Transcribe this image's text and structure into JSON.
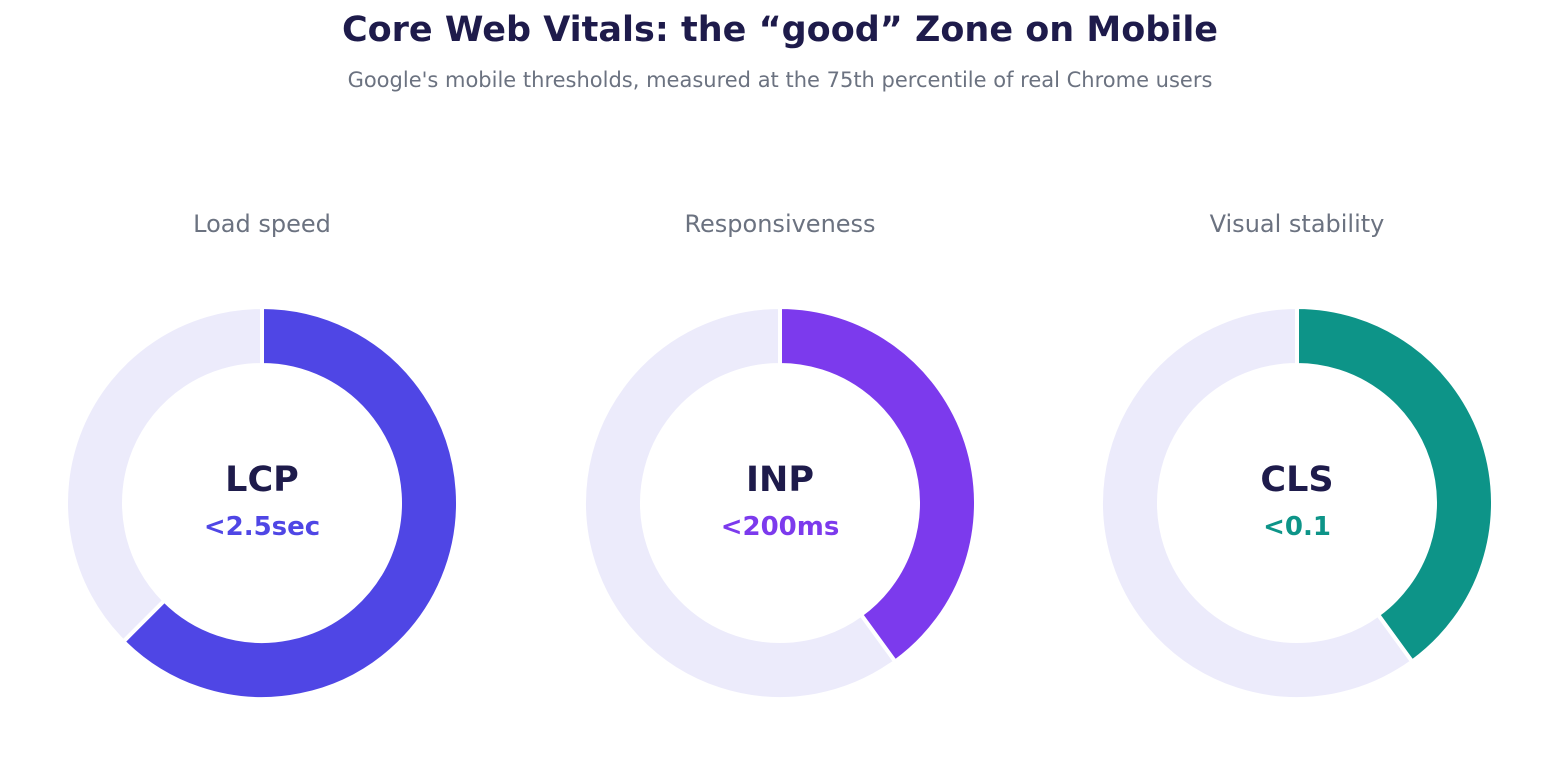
{
  "header": {
    "title": "Core Web Vitals: the “good” Zone on Mobile",
    "subtitle": "Google's mobile thresholds, measured at the 75th percentile of real Chrome users"
  },
  "colors": {
    "track": "#ecebfb",
    "gap": "#ffffff"
  },
  "chart_data": [
    {
      "type": "pie",
      "title": "Load speed",
      "center_label": "LCP",
      "center_value": "<2.5sec",
      "good_fraction": 0.625,
      "color": "#4f46e5"
    },
    {
      "type": "pie",
      "title": "Responsiveness",
      "center_label": "INP",
      "center_value": "<200ms",
      "good_fraction": 0.4,
      "color": "#7c3aed"
    },
    {
      "type": "pie",
      "title": "Visual stability",
      "center_label": "CLS",
      "center_value": "<0.1",
      "good_fraction": 0.4,
      "color": "#0d9488"
    }
  ]
}
